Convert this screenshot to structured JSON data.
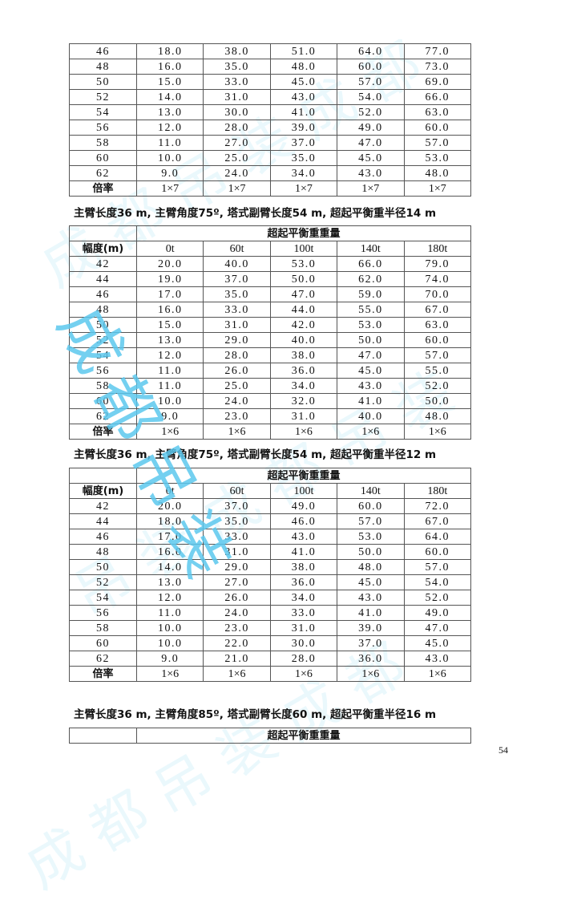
{
  "watermark": {
    "text": "成都吊装",
    "color": "#5cc8ee"
  },
  "header_group_label": "超起平衡重重量",
  "col_header_first": "幅度(m)",
  "col_headers": [
    "0t",
    "60t",
    "100t",
    "140t",
    "180t"
  ],
  "ratio_label": "倍率",
  "tables": [
    {
      "heading": "",
      "show_header": false,
      "rows": [
        [
          "46",
          "18.0",
          "38.0",
          "51.0",
          "64.0",
          "77.0"
        ],
        [
          "48",
          "16.0",
          "35.0",
          "48.0",
          "60.0",
          "73.0"
        ],
        [
          "50",
          "15.0",
          "33.0",
          "45.0",
          "57.0",
          "69.0"
        ],
        [
          "52",
          "14.0",
          "31.0",
          "43.0",
          "54.0",
          "66.0"
        ],
        [
          "54",
          "13.0",
          "30.0",
          "41.0",
          "52.0",
          "63.0"
        ],
        [
          "56",
          "12.0",
          "28.0",
          "39.0",
          "49.0",
          "60.0"
        ],
        [
          "58",
          "11.0",
          "27.0",
          "37.0",
          "47.0",
          "57.0"
        ],
        [
          "60",
          "10.0",
          "25.0",
          "35.0",
          "45.0",
          "53.0"
        ],
        [
          "62",
          "9.0",
          "24.0",
          "34.0",
          "43.0",
          "48.0"
        ]
      ],
      "ratio": [
        "1×7",
        "1×7",
        "1×7",
        "1×7",
        "1×7"
      ]
    },
    {
      "heading": "主臂长度36 m, 主臂角度75º, 塔式副臂长度54 m, 超起平衡重半径14 m",
      "show_header": true,
      "rows": [
        [
          "42",
          "20.0",
          "40.0",
          "53.0",
          "66.0",
          "79.0"
        ],
        [
          "44",
          "19.0",
          "37.0",
          "50.0",
          "62.0",
          "74.0"
        ],
        [
          "46",
          "17.0",
          "35.0",
          "47.0",
          "59.0",
          "70.0"
        ],
        [
          "48",
          "16.0",
          "33.0",
          "44.0",
          "55.0",
          "67.0"
        ],
        [
          "50",
          "15.0",
          "31.0",
          "42.0",
          "53.0",
          "63.0"
        ],
        [
          "52",
          "13.0",
          "29.0",
          "40.0",
          "50.0",
          "60.0"
        ],
        [
          "54",
          "12.0",
          "28.0",
          "38.0",
          "47.0",
          "57.0"
        ],
        [
          "56",
          "11.0",
          "26.0",
          "36.0",
          "45.0",
          "55.0"
        ],
        [
          "58",
          "11.0",
          "25.0",
          "34.0",
          "43.0",
          "52.0"
        ],
        [
          "60",
          "10.0",
          "24.0",
          "32.0",
          "41.0",
          "50.0"
        ],
        [
          "62",
          "9.0",
          "23.0",
          "31.0",
          "40.0",
          "48.0"
        ]
      ],
      "ratio": [
        "1×6",
        "1×6",
        "1×6",
        "1×6",
        "1×6"
      ]
    },
    {
      "heading": "主臂长度36 m, 主臂角度75º, 塔式副臂长度54 m, 超起平衡重半径12 m",
      "show_header": true,
      "rows": [
        [
          "42",
          "20.0",
          "37.0",
          "49.0",
          "60.0",
          "72.0"
        ],
        [
          "44",
          "18.0",
          "35.0",
          "46.0",
          "57.0",
          "67.0"
        ],
        [
          "46",
          "17.0",
          "33.0",
          "43.0",
          "53.0",
          "64.0"
        ],
        [
          "48",
          "16.0",
          "31.0",
          "41.0",
          "50.0",
          "60.0"
        ],
        [
          "50",
          "14.0",
          "29.0",
          "38.0",
          "48.0",
          "57.0"
        ],
        [
          "52",
          "13.0",
          "27.0",
          "36.0",
          "45.0",
          "54.0"
        ],
        [
          "54",
          "12.0",
          "26.0",
          "34.0",
          "43.0",
          "52.0"
        ],
        [
          "56",
          "11.0",
          "24.0",
          "33.0",
          "41.0",
          "49.0"
        ],
        [
          "58",
          "10.0",
          "23.0",
          "31.0",
          "39.0",
          "47.0"
        ],
        [
          "60",
          "10.0",
          "22.0",
          "30.0",
          "37.0",
          "45.0"
        ],
        [
          "62",
          "9.0",
          "21.0",
          "28.0",
          "36.0",
          "43.0"
        ]
      ],
      "ratio": [
        "1×6",
        "1×6",
        "1×6",
        "1×6",
        "1×6"
      ]
    },
    {
      "heading": "主臂长度36 m, 主臂角度85º, 塔式副臂长度60 m, 超起平衡重半径16 m",
      "show_header": false,
      "group_only": true,
      "rows": [],
      "ratio": []
    }
  ],
  "page_number": "54"
}
